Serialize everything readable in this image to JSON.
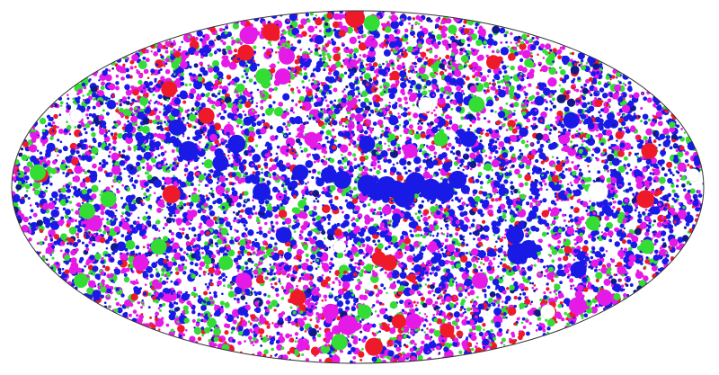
{
  "chart_data": {
    "type": "scatter",
    "projection": "mollweide",
    "grid": false,
    "legend": "none",
    "title": "",
    "xlabel": "",
    "ylabel": "",
    "xlim": [
      -180,
      180
    ],
    "ylim": [
      -90,
      90
    ],
    "background": "#ffffff",
    "outline_color": "#333333",
    "series": [
      {
        "color": "#1a1ae6",
        "points": [
          {
            "lon": 5,
            "lat": 1,
            "r": 11
          },
          {
            "lon": 10,
            "lat": -2,
            "r": 10
          },
          {
            "lon": 15,
            "lat": 0,
            "r": 12
          },
          {
            "lon": 20,
            "lat": -1,
            "r": 10
          },
          {
            "lon": 24,
            "lat": -4,
            "r": 12
          },
          {
            "lon": 30,
            "lat": 2,
            "r": 11
          },
          {
            "lon": 38,
            "lat": -1,
            "r": 12
          },
          {
            "lon": 45,
            "lat": -2,
            "r": 11
          },
          {
            "lon": 52,
            "lat": 3,
            "r": 10
          },
          {
            "lon": -8,
            "lat": 3,
            "r": 10
          },
          {
            "lon": -15,
            "lat": 5,
            "r": 9
          },
          {
            "lon": -30,
            "lat": 6,
            "r": 9
          },
          {
            "lon": -50,
            "lat": -2,
            "r": 10
          },
          {
            "lon": -65,
            "lat": 18,
            "r": 10
          },
          {
            "lon": -72,
            "lat": 10,
            "r": 9
          },
          {
            "lon": -90,
            "lat": 15,
            "r": 11
          },
          {
            "lon": -100,
            "lat": 25,
            "r": 9
          },
          {
            "lon": 90,
            "lat": -28,
            "r": 12
          },
          {
            "lon": 85,
            "lat": -20,
            "r": 10
          },
          {
            "lon": 95,
            "lat": -26,
            "r": 10
          },
          {
            "lon": 5,
            "lat": 18,
            "r": 9
          },
          {
            "lon": 60,
            "lat": 20,
            "r": 9
          },
          {
            "lon": -40,
            "lat": -20,
            "r": 9
          },
          {
            "lon": 120,
            "lat": 28,
            "r": 9
          },
          {
            "lon": 130,
            "lat": -35,
            "r": 9
          }
        ]
      },
      {
        "color": "#e61ae6",
        "points": [
          {
            "lon": -112,
            "lat": 70,
            "r": 10
          },
          {
            "lon": -55,
            "lat": 58,
            "r": 9
          },
          {
            "lon": -50,
            "lat": 48,
            "r": 9
          },
          {
            "lon": -140,
            "lat": -15,
            "r": 9
          },
          {
            "lon": -125,
            "lat": -32,
            "r": 9
          },
          {
            "lon": -8,
            "lat": -62,
            "r": 11
          },
          {
            "lon": -20,
            "lat": -55,
            "r": 9
          },
          {
            "lon": 45,
            "lat": -60,
            "r": 9
          },
          {
            "lon": 155,
            "lat": -52,
            "r": 10
          },
          {
            "lon": 165,
            "lat": -48,
            "r": 9
          },
          {
            "lon": 75,
            "lat": -40,
            "r": 9
          },
          {
            "lon": 28,
            "lat": 15,
            "r": 8
          },
          {
            "lon": -25,
            "lat": 20,
            "r": 8
          },
          {
            "lon": -70,
            "lat": -40,
            "r": 9
          }
        ]
      },
      {
        "color": "#ee1a2a",
        "points": [
          {
            "lon": -5,
            "lat": 82,
            "r": 11
          },
          {
            "lon": -95,
            "lat": 72,
            "r": 10
          },
          {
            "lon": -90,
            "lat": 60,
            "r": 9
          },
          {
            "lon": -118,
            "lat": 42,
            "r": 9
          },
          {
            "lon": -86,
            "lat": 30,
            "r": 9
          },
          {
            "lon": -165,
            "lat": 5,
            "r": 8
          },
          {
            "lon": -97,
            "lat": -3,
            "r": 10
          },
          {
            "lon": 12,
            "lat": -30,
            "r": 8
          },
          {
            "lon": 18,
            "lat": -32,
            "r": 9
          },
          {
            "lon": 33,
            "lat": -60,
            "r": 8
          },
          {
            "lon": 20,
            "lat": -75,
            "r": 10
          },
          {
            "lon": 155,
            "lat": 15,
            "r": 9
          },
          {
            "lon": 150,
            "lat": -5,
            "r": 10
          },
          {
            "lon": -40,
            "lat": -48,
            "r": 9
          },
          {
            "lon": 100,
            "lat": 55,
            "r": 8
          },
          {
            "lon": 80,
            "lat": -65,
            "r": 8
          }
        ]
      },
      {
        "color": "#33dd33",
        "points": [
          {
            "lon": 20,
            "lat": 78,
            "r": 9
          },
          {
            "lon": -63,
            "lat": 48,
            "r": 9
          },
          {
            "lon": -167,
            "lat": 6,
            "r": 9
          },
          {
            "lon": -130,
            "lat": -5,
            "r": 9
          },
          {
            "lon": -142,
            "lat": -10,
            "r": 9
          },
          {
            "lon": -110,
            "lat": -25,
            "r": 9
          },
          {
            "lon": 70,
            "lat": 35,
            "r": 9
          },
          {
            "lon": 45,
            "lat": 20,
            "r": 8
          },
          {
            "lon": 5,
            "lat": -55,
            "r": 8
          },
          {
            "lon": -20,
            "lat": -72,
            "r": 9
          },
          {
            "lon": -76,
            "lat": -32,
            "r": 8
          },
          {
            "lon": 125,
            "lat": -15,
            "r": 8
          },
          {
            "lon": 160,
            "lat": -25,
            "r": 8
          },
          {
            "lon": -170,
            "lat": -40,
            "r": 8
          }
        ]
      },
      {
        "color": "#ffffff",
        "points": [
          {
            "lon": 125,
            "lat": -2,
            "r": 11
          },
          {
            "lon": -160,
            "lat": 30,
            "r": 7
          },
          {
            "lon": 40,
            "lat": 35,
            "r": 8
          },
          {
            "lon": -10,
            "lat": -25,
            "r": 7
          },
          {
            "lon": 140,
            "lat": -55,
            "r": 8
          },
          {
            "lon": 175,
            "lat": 5,
            "r": 7
          }
        ]
      }
    ],
    "density": {
      "colors": [
        "#1a1ae6",
        "#e61ae6",
        "#33dd33",
        "#ee1a2a",
        "#0f1a88"
      ],
      "weights_equator": [
        0.55,
        0.2,
        0.15,
        0.05,
        0.05
      ],
      "weights_poles": [
        0.18,
        0.45,
        0.17,
        0.17,
        0.03
      ],
      "count": 9000
    }
  }
}
